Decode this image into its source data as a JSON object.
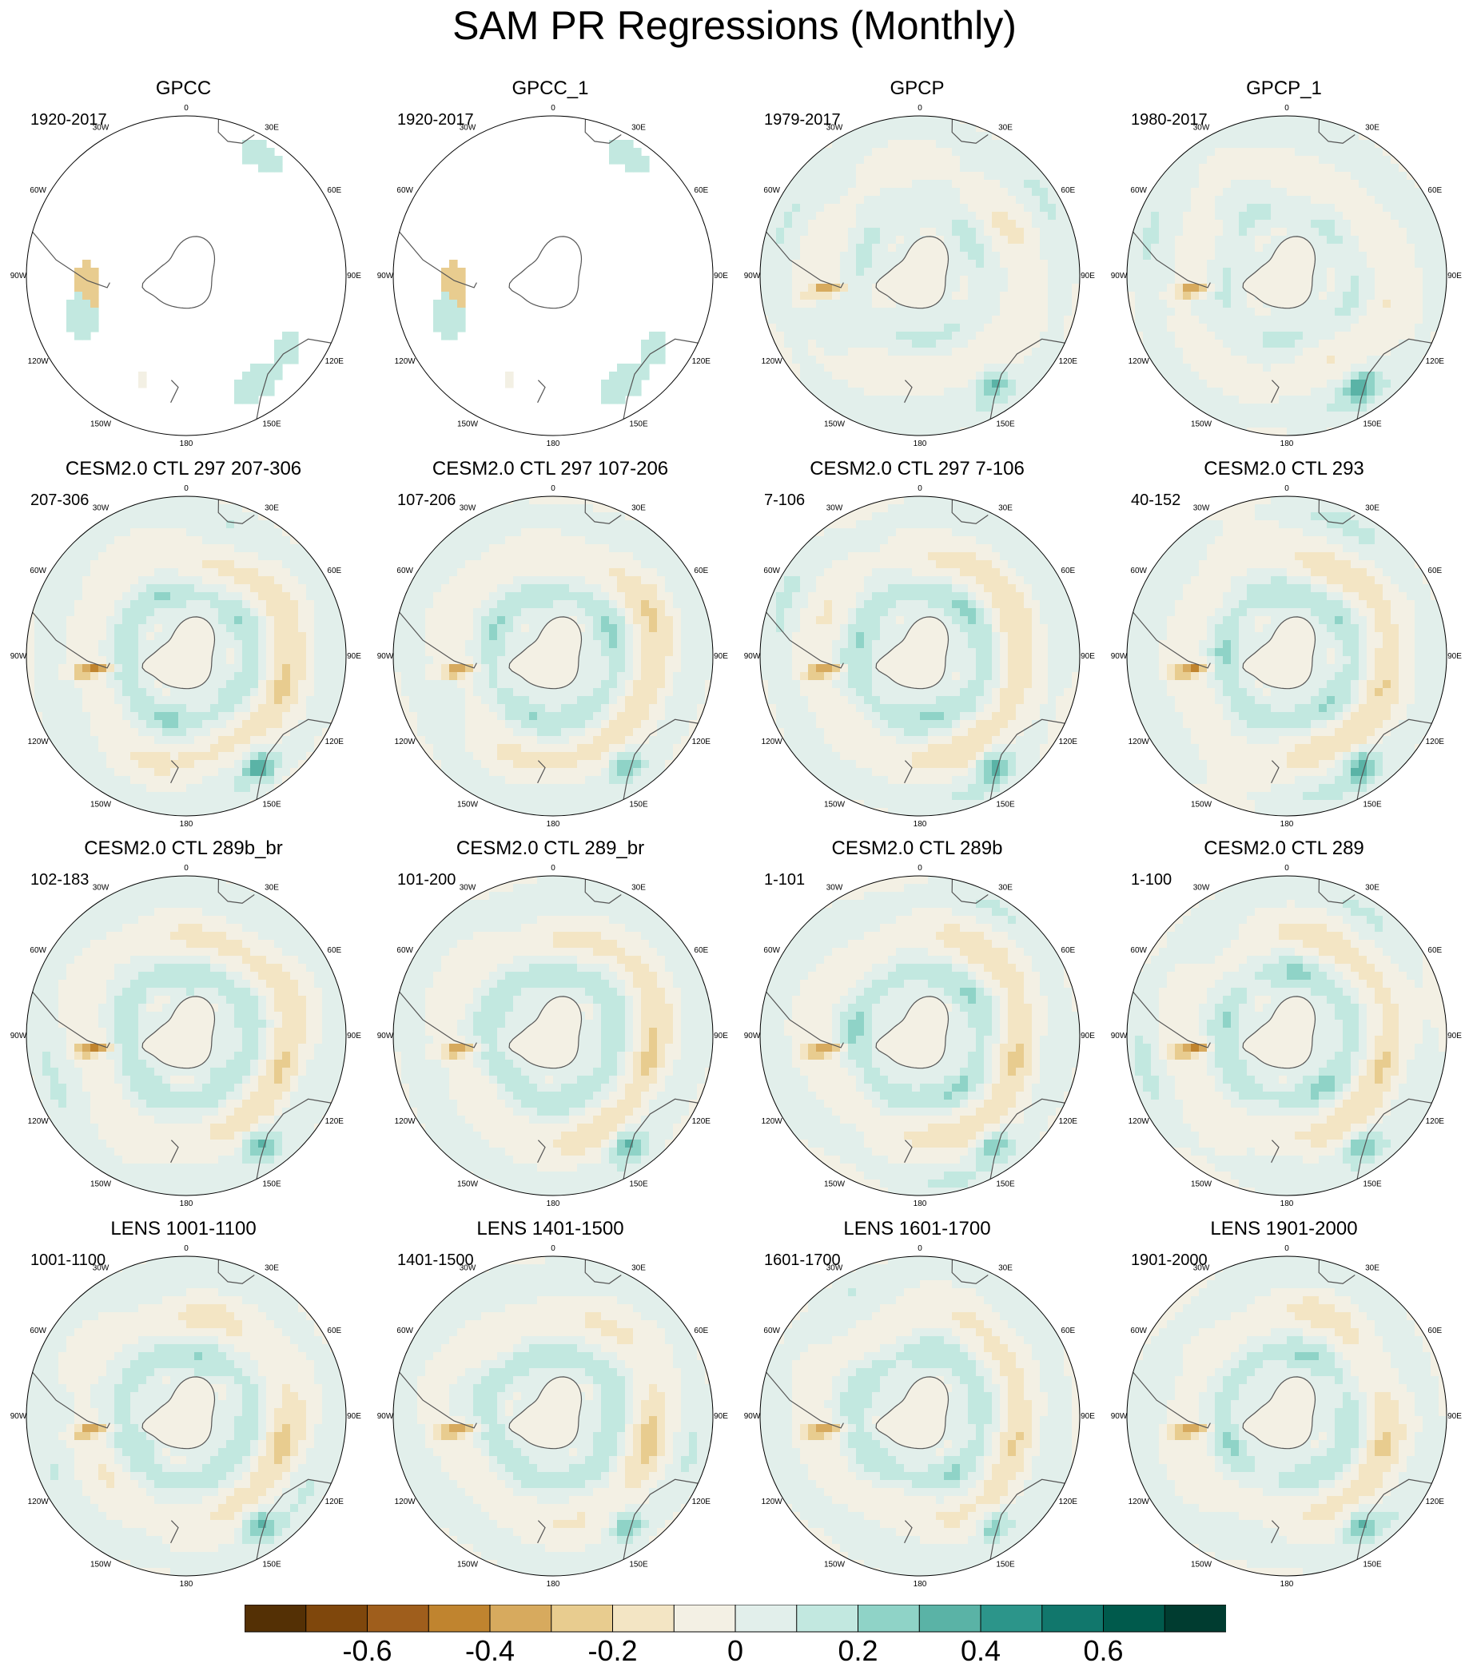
{
  "title": "SAM PR Regressions (Monthly)",
  "lon_labels": [
    "0",
    "30E",
    "60E",
    "90E",
    "120E",
    "150E",
    "180",
    "150W",
    "120W",
    "90W",
    "60W",
    "30W"
  ],
  "colorbar": {
    "levels": [
      -0.7,
      -0.6,
      -0.5,
      -0.4,
      -0.3,
      -0.2,
      -0.1,
      0,
      0.1,
      0.2,
      0.3,
      0.4,
      0.5,
      0.6,
      0.7
    ],
    "colors": [
      "#543005",
      "#7f470c",
      "#9f5e1c",
      "#c0842f",
      "#d7aa5e",
      "#e8cc8f",
      "#f3e5c4",
      "#f3f0e4",
      "#e2efeb",
      "#c2e8e0",
      "#8fd3c7",
      "#5ab3a6",
      "#2c958a",
      "#11776c",
      "#005a4c",
      "#003c30"
    ],
    "tick_labels": [
      "-0.6",
      "-0.4",
      "-0.2",
      "0",
      "0.2",
      "0.4",
      "0.6"
    ],
    "tick_values": [
      -0.6,
      -0.4,
      -0.2,
      0,
      0.2,
      0.4,
      0.6
    ]
  },
  "panels": [
    {
      "title": "GPCC",
      "period": "1920-2017",
      "kind": "obs_gpcc"
    },
    {
      "title": "GPCC_1",
      "period": "1920-2017",
      "kind": "obs_gpcc"
    },
    {
      "title": "GPCP",
      "period": "1979-2017",
      "kind": "obs_gpcp"
    },
    {
      "title": "GPCP_1",
      "period": "1980-2017",
      "kind": "obs_gpcp"
    },
    {
      "title": "CESM2.0 CTL 297 207-306",
      "period": "207-306",
      "kind": "model"
    },
    {
      "title": "CESM2.0 CTL 297 107-206",
      "period": "107-206",
      "kind": "model"
    },
    {
      "title": "CESM2.0 CTL 297 7-106",
      "period": "7-106",
      "kind": "model"
    },
    {
      "title": "CESM2.0 CTL 293",
      "period": "40-152",
      "kind": "model"
    },
    {
      "title": "CESM2.0 CTL 289b_br",
      "period": "102-183",
      "kind": "model"
    },
    {
      "title": "CESM2.0 CTL 289_br",
      "period": "101-200",
      "kind": "model"
    },
    {
      "title": "CESM2.0 CTL 289b",
      "period": "1-101",
      "kind": "model"
    },
    {
      "title": "CESM2.0 CTL 289",
      "period": "1-100",
      "kind": "model"
    },
    {
      "title": "LENS 1001-1100",
      "period": "1001-1100",
      "kind": "lens"
    },
    {
      "title": "LENS 1401-1500",
      "period": "1401-1500",
      "kind": "lens"
    },
    {
      "title": "LENS 1601-1700",
      "period": "1601-1700",
      "kind": "lens"
    },
    {
      "title": "LENS 1901-2000",
      "period": "1901-2000",
      "kind": "lens"
    }
  ],
  "chart_data": {
    "type": "heatmap",
    "title": "SAM PR Regressions (Monthly)",
    "projection": "south polar stereographic",
    "colorbar_range": [
      -0.7,
      0.7
    ],
    "colorbar_interval": 0.1,
    "colorbar_ticks": [
      -0.6,
      -0.4,
      -0.2,
      0,
      0.2,
      0.4,
      0.6
    ],
    "panel_count": 16,
    "grid": false
  }
}
